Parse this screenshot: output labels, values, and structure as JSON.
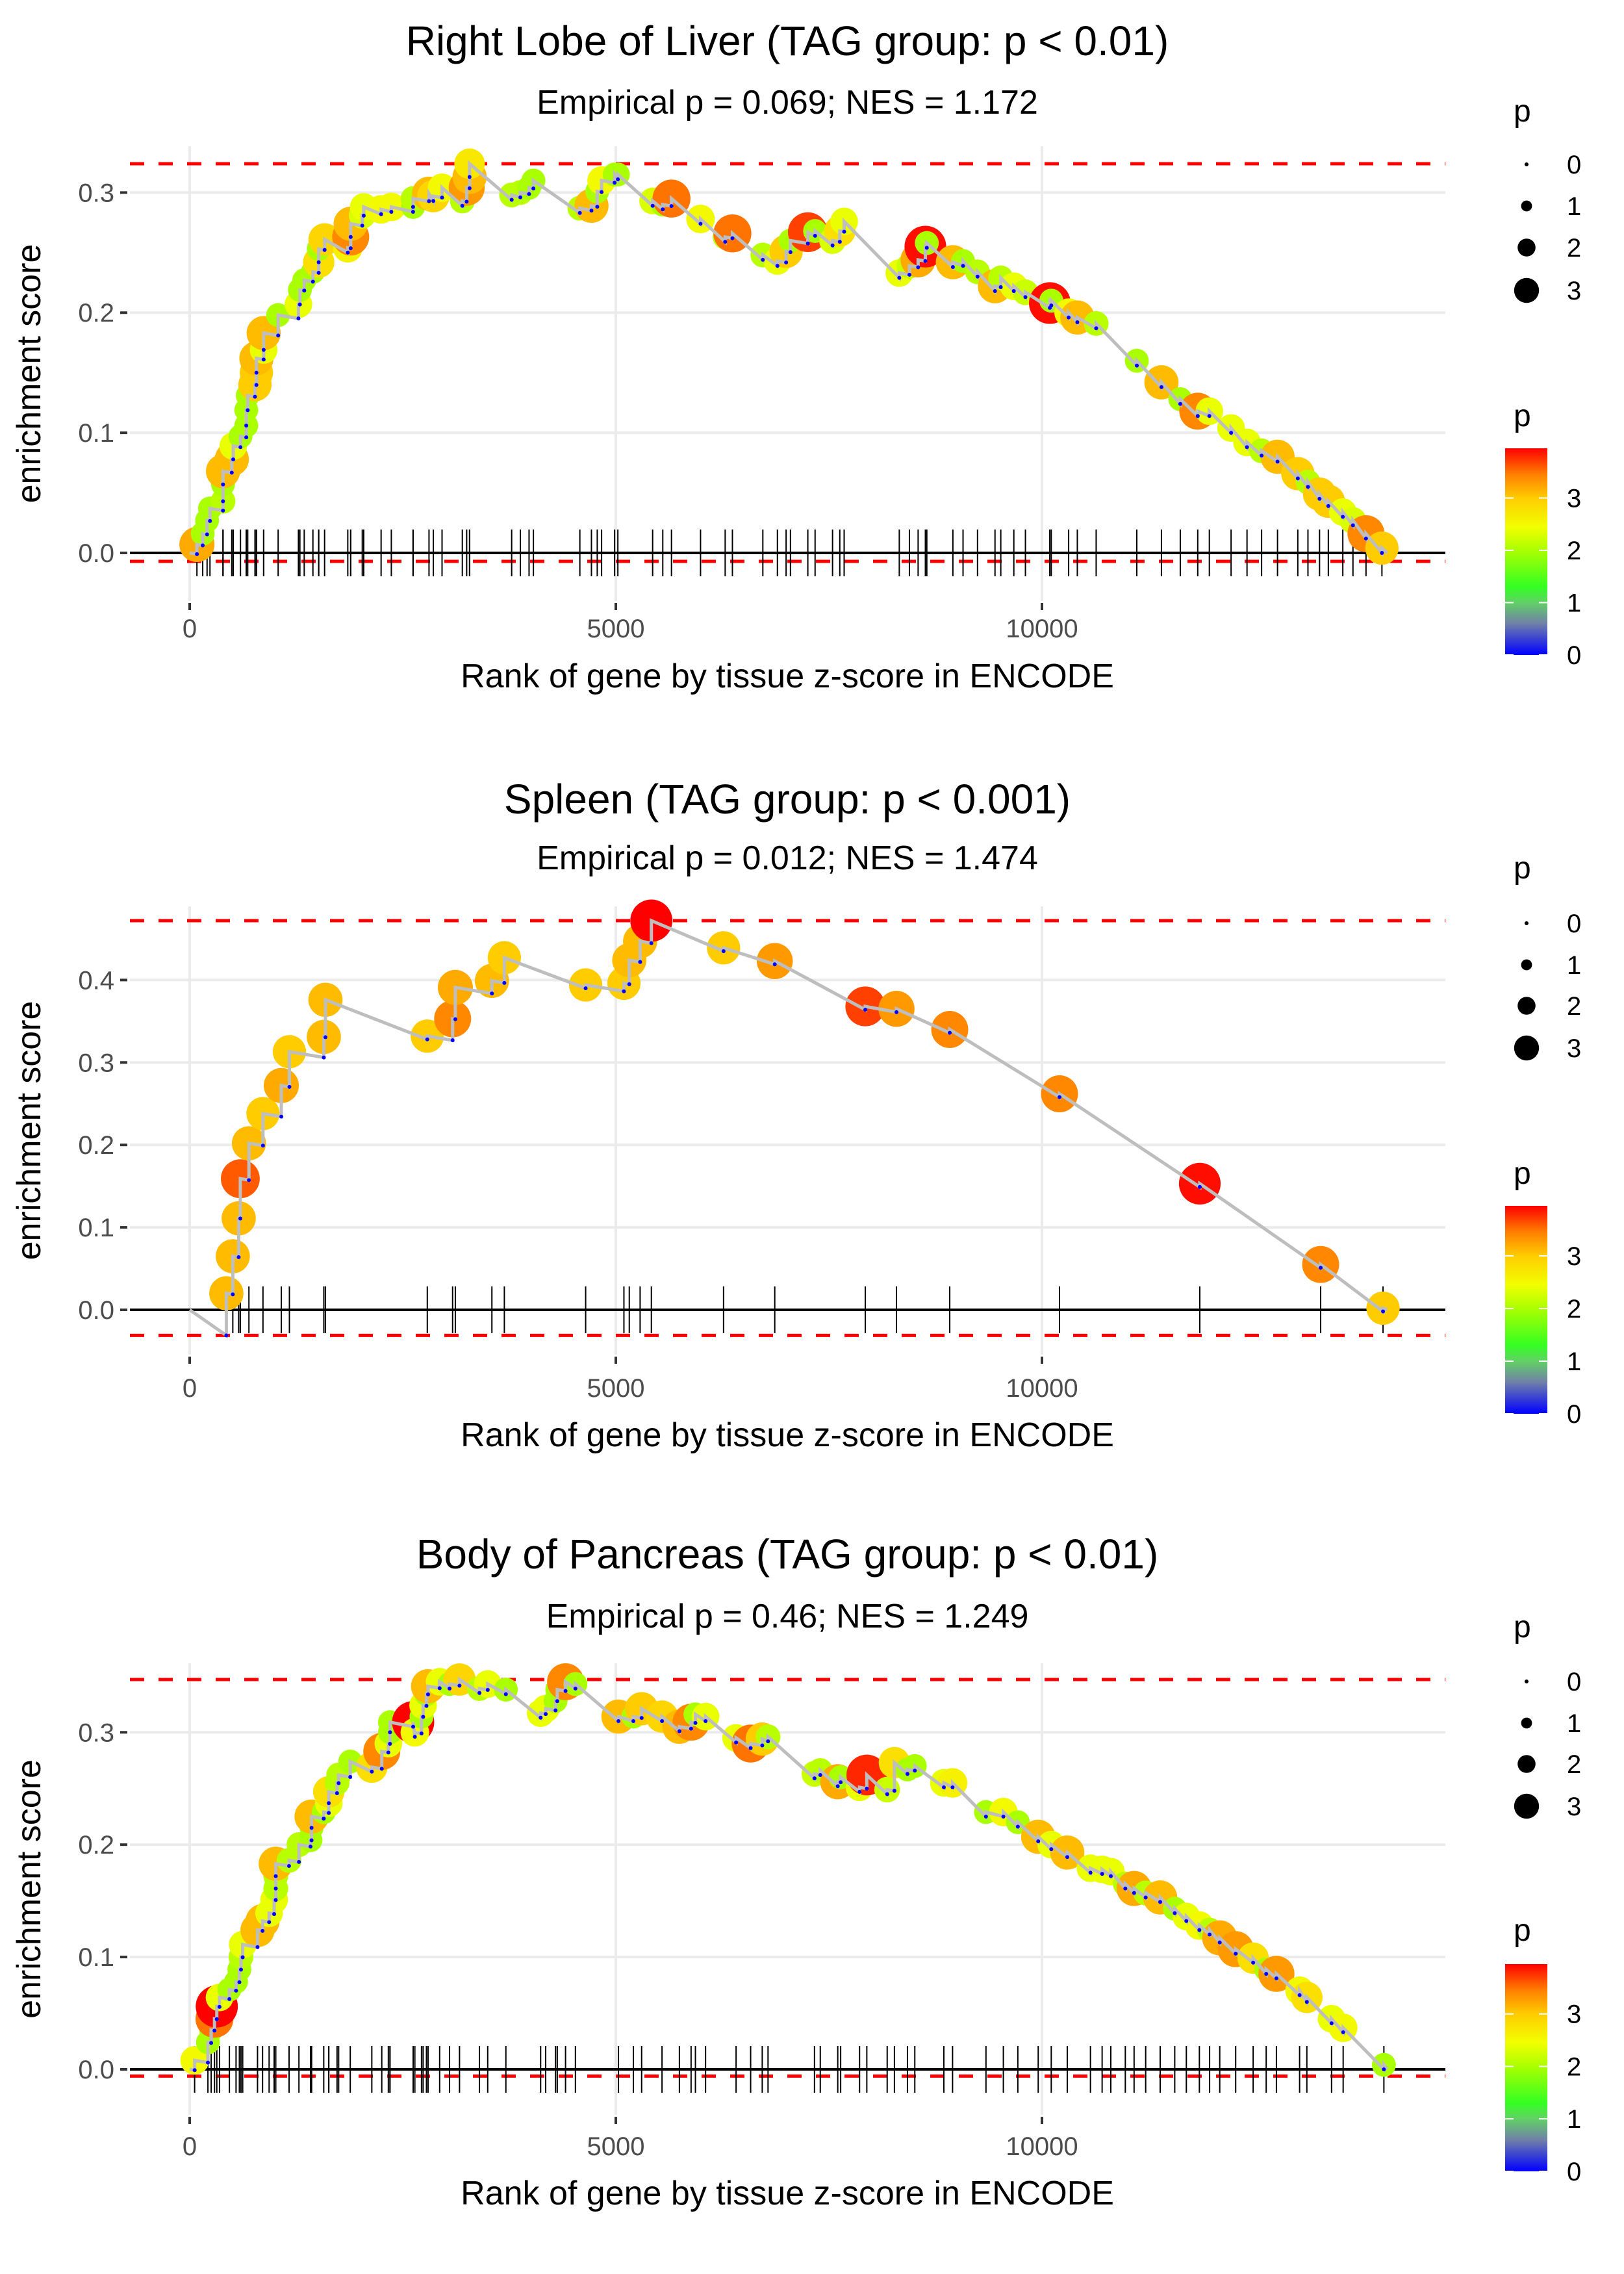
{
  "figure": {
    "legend_title": "p",
    "xlabel": "Rank of gene by tissue z-score in ENCODE",
    "ylabel": "enrichment score",
    "size_legend": {
      "labels": [
        "0",
        "1",
        "2",
        "3"
      ],
      "values": [
        0,
        1,
        2,
        3
      ]
    },
    "color_legend": {
      "labels": [
        "3",
        "2",
        "1",
        "0"
      ],
      "values": [
        3,
        2,
        1,
        0
      ],
      "range": [
        0,
        3.95
      ],
      "gradient": [
        {
          "v": 0.0,
          "color": "#0000ff"
        },
        {
          "v": 0.6,
          "color": "#7080a8"
        },
        {
          "v": 1.0,
          "color": "#62d066"
        },
        {
          "v": 1.3,
          "color": "#33ff22"
        },
        {
          "v": 2.0,
          "color": "#aaff00"
        },
        {
          "v": 2.45,
          "color": "#f2ff00"
        },
        {
          "v": 3.0,
          "color": "#ffcc00"
        },
        {
          "v": 3.45,
          "color": "#ff8000"
        },
        {
          "v": 3.95,
          "color": "#ff0000"
        }
      ]
    },
    "colors": {
      "line": "#bebebe",
      "dashed": "#ff0000",
      "rug": "#000000",
      "grid": "#ebebeb",
      "axis_text": "#4d4d4d",
      "low_point": "#0000ff"
    }
  },
  "chart_data": [
    {
      "type": "scatter",
      "title": "Right Lobe of Liver (TAG group: p < 0.01)",
      "subtitle": "Empirical p = 0.069; NES = 1.172",
      "xlabel": "Rank of gene by tissue z-score in ENCODE",
      "ylabel": "enrichment score",
      "xlim": [
        -800,
        14800
      ],
      "ylim": [
        -0.04,
        0.335
      ],
      "xticks": [
        0,
        5000,
        10000
      ],
      "xtick_labels": [
        "0",
        "5000",
        "10000"
      ],
      "yticks": [
        0.0,
        0.1,
        0.2,
        0.3
      ],
      "ytick_labels": [
        "0.0",
        "0.1",
        "0.2",
        "0.3"
      ],
      "max_es": 0.324,
      "min_es": -0.007,
      "points": [
        [
          85,
          0.007,
          3.2
        ],
        [
          153,
          0.016,
          2.0
        ],
        [
          204,
          0.027,
          2.0
        ],
        [
          238,
          0.037,
          2.0
        ],
        [
          391,
          0.043,
          2.1
        ],
        [
          391,
          0.057,
          2.0
        ],
        [
          391,
          0.068,
          3.1
        ],
        [
          494,
          0.078,
          3.1
        ],
        [
          511,
          0.089,
          2.4
        ],
        [
          596,
          0.097,
          2.0
        ],
        [
          664,
          0.106,
          2.0
        ],
        [
          664,
          0.119,
          2.0
        ],
        [
          681,
          0.131,
          2.0
        ],
        [
          766,
          0.14,
          3.0
        ],
        [
          783,
          0.15,
          3.0
        ],
        [
          783,
          0.162,
          3.1
        ],
        [
          868,
          0.169,
          2.4
        ],
        [
          868,
          0.183,
          3.1
        ],
        [
          1038,
          0.198,
          2.0
        ],
        [
          1276,
          0.207,
          2.4
        ],
        [
          1293,
          0.219,
          2.0
        ],
        [
          1344,
          0.227,
          2.0
        ],
        [
          1446,
          0.234,
          2.0
        ],
        [
          1514,
          0.242,
          2.8
        ],
        [
          1514,
          0.253,
          2.0
        ],
        [
          1583,
          0.261,
          2.9
        ],
        [
          1855,
          0.254,
          2.6
        ],
        [
          1889,
          0.263,
          3.4
        ],
        [
          1889,
          0.274,
          3.1
        ],
        [
          2025,
          0.281,
          2.3
        ],
        [
          2042,
          0.288,
          2.4
        ],
        [
          2246,
          0.286,
          2.5
        ],
        [
          2366,
          0.288,
          2.5
        ],
        [
          2621,
          0.288,
          2.0
        ],
        [
          2621,
          0.295,
          2.1
        ],
        [
          2808,
          0.299,
          3.1
        ],
        [
          2859,
          0.297,
          2.9
        ],
        [
          2961,
          0.304,
          2.5
        ],
        [
          3199,
          0.293,
          2.1
        ],
        [
          3250,
          0.304,
          3.3
        ],
        [
          3284,
          0.313,
          3.1
        ],
        [
          3284,
          0.324,
          2.7
        ],
        [
          3778,
          0.298,
          2.1
        ],
        [
          3880,
          0.3,
          2.1
        ],
        [
          3982,
          0.304,
          2.0
        ],
        [
          4033,
          0.31,
          2.0
        ],
        [
          4578,
          0.287,
          2.1
        ],
        [
          4714,
          0.289,
          3.1
        ],
        [
          4782,
          0.301,
          2.0
        ],
        [
          4833,
          0.31,
          2.5
        ],
        [
          4986,
          0.315,
          2.0
        ],
        [
          5024,
          0.315,
          2.0
        ],
        [
          5432,
          0.293,
          2.3
        ],
        [
          5551,
          0.29,
          2.0
        ],
        [
          5653,
          0.295,
          3.5
        ],
        [
          5994,
          0.278,
          2.5
        ],
        [
          6283,
          0.263,
          2.1
        ],
        [
          6368,
          0.266,
          3.5
        ],
        [
          6725,
          0.248,
          2.1
        ],
        [
          6896,
          0.243,
          2.4
        ],
        [
          6998,
          0.251,
          3.0
        ],
        [
          7049,
          0.26,
          2.0
        ],
        [
          7253,
          0.267,
          3.7
        ],
        [
          7338,
          0.268,
          2.0
        ],
        [
          7543,
          0.26,
          2.3
        ],
        [
          7628,
          0.268,
          2.8
        ],
        [
          7679,
          0.276,
          2.4
        ],
        [
          8326,
          0.233,
          2.4
        ],
        [
          8445,
          0.239,
          2.2
        ],
        [
          8547,
          0.244,
          3.2
        ],
        [
          8632,
          0.255,
          3.9
        ],
        [
          8649,
          0.258,
          2.0
        ],
        [
          8955,
          0.242,
          3.1
        ],
        [
          9074,
          0.243,
          2.0
        ],
        [
          9244,
          0.234,
          2.1
        ],
        [
          9449,
          0.222,
          3.1
        ],
        [
          9517,
          0.229,
          2.1
        ],
        [
          9670,
          0.222,
          2.4
        ],
        [
          9806,
          0.217,
          2.2
        ],
        [
          10092,
          0.208,
          3.9
        ],
        [
          10109,
          0.21,
          2.0
        ],
        [
          10313,
          0.2,
          2.5
        ],
        [
          10415,
          0.196,
          3.1
        ],
        [
          10636,
          0.191,
          2.1
        ],
        [
          11113,
          0.16,
          2.0
        ],
        [
          11402,
          0.142,
          3.1
        ],
        [
          11623,
          0.128,
          2.0
        ],
        [
          11828,
          0.118,
          3.4
        ],
        [
          11964,
          0.118,
          2.4
        ],
        [
          12219,
          0.104,
          2.4
        ],
        [
          12406,
          0.092,
          2.4
        ],
        [
          12577,
          0.085,
          2.1
        ],
        [
          12764,
          0.08,
          3.1
        ],
        [
          13002,
          0.066,
          3.0
        ],
        [
          13121,
          0.059,
          2.1
        ],
        [
          13257,
          0.049,
          3.0
        ],
        [
          13360,
          0.043,
          3.0
        ],
        [
          13530,
          0.034,
          2.4
        ],
        [
          13649,
          0.027,
          2.3
        ],
        [
          13802,
          0.016,
          3.4
        ],
        [
          13989,
          0.004,
          3.0
        ]
      ]
    },
    {
      "type": "scatter",
      "title": "Spleen (TAG group: p < 0.001)",
      "subtitle": "Empirical p = 0.012; NES = 1.474",
      "xlabel": "Rank of gene by tissue z-score in ENCODE",
      "ylabel": "enrichment score",
      "xlim": [
        -800,
        14800
      ],
      "ylim": [
        -0.055,
        0.485
      ],
      "xticks": [
        0,
        5000,
        10000
      ],
      "xtick_labels": [
        "0",
        "5000",
        "10000"
      ],
      "yticks": [
        0.0,
        0.1,
        0.2,
        0.3,
        0.4
      ],
      "ytick_labels": [
        "0.0",
        "0.1",
        "0.2",
        "0.3",
        "0.4"
      ],
      "max_es": 0.472,
      "min_es": -0.031,
      "points": [
        [
          430,
          0.02,
          3.1
        ],
        [
          506,
          0.065,
          3.1
        ],
        [
          575,
          0.111,
          3.1
        ],
        [
          594,
          0.159,
          3.6
        ],
        [
          695,
          0.202,
          3.1
        ],
        [
          860,
          0.238,
          3.0
        ],
        [
          1075,
          0.272,
          3.2
        ],
        [
          1170,
          0.313,
          3.0
        ],
        [
          1574,
          0.331,
          3.1
        ],
        [
          1593,
          0.376,
          3.1
        ],
        [
          2788,
          0.332,
          3.0
        ],
        [
          3085,
          0.353,
          3.4
        ],
        [
          3117,
          0.391,
          3.2
        ],
        [
          3546,
          0.399,
          3.1
        ],
        [
          3692,
          0.427,
          3.0
        ],
        [
          4646,
          0.394,
          3.0
        ],
        [
          5095,
          0.396,
          3.0
        ],
        [
          5158,
          0.424,
          3.1
        ],
        [
          5285,
          0.447,
          3.1
        ],
        [
          5417,
          0.472,
          3.95
        ],
        [
          6264,
          0.439,
          3.0
        ],
        [
          6865,
          0.423,
          3.3
        ],
        [
          7927,
          0.368,
          3.7
        ],
        [
          8293,
          0.365,
          3.3
        ],
        [
          8918,
          0.34,
          3.4
        ],
        [
          10206,
          0.262,
          3.4
        ],
        [
          11852,
          0.153,
          3.9
        ],
        [
          13270,
          0.055,
          3.4
        ],
        [
          14002,
          0.002,
          3.0
        ]
      ]
    },
    {
      "type": "scatter",
      "title": "Body of Pancreas (TAG group: p < 0.01)",
      "subtitle": "Empirical p = 0.46; NES = 1.249",
      "xlabel": "Rank of gene by tissue z-score in ENCODE",
      "ylabel": "enrichment score",
      "xlim": [
        -800,
        14800
      ],
      "ylim": [
        -0.04,
        0.36
      ],
      "xticks": [
        0,
        5000,
        10000
      ],
      "xtick_labels": [
        "0",
        "5000",
        "10000"
      ],
      "yticks": [
        0.0,
        0.1,
        0.2,
        0.3
      ],
      "ytick_labels": [
        "0.0",
        "0.1",
        "0.2",
        "0.3"
      ],
      "max_es": 0.347,
      "min_es": -0.006,
      "points": [
        [
          58,
          0.008,
          2.5
        ],
        [
          214,
          0.024,
          2.0
        ],
        [
          252,
          0.035,
          2.0
        ],
        [
          291,
          0.045,
          3.5
        ],
        [
          318,
          0.056,
          3.95
        ],
        [
          350,
          0.064,
          2.4
        ],
        [
          466,
          0.071,
          2.0
        ],
        [
          544,
          0.078,
          2.0
        ],
        [
          583,
          0.089,
          2.0
        ],
        [
          602,
          0.1,
          2.1
        ],
        [
          622,
          0.111,
          2.4
        ],
        [
          796,
          0.124,
          3.1
        ],
        [
          855,
          0.132,
          3.1
        ],
        [
          932,
          0.139,
          2.4
        ],
        [
          991,
          0.151,
          2.4
        ],
        [
          1010,
          0.161,
          2.1
        ],
        [
          1010,
          0.172,
          2.1
        ],
        [
          1010,
          0.183,
          3.1
        ],
        [
          1166,
          0.186,
          2.1
        ],
        [
          1282,
          0.2,
          2.1
        ],
        [
          1418,
          0.204,
          2.0
        ],
        [
          1430,
          0.215,
          2.0
        ],
        [
          1430,
          0.225,
          3.1
        ],
        [
          1573,
          0.229,
          2.0
        ],
        [
          1632,
          0.237,
          2.4
        ],
        [
          1632,
          0.247,
          2.8
        ],
        [
          1729,
          0.255,
          2.1
        ],
        [
          1748,
          0.262,
          2.1
        ],
        [
          1884,
          0.274,
          2.0
        ],
        [
          2137,
          0.269,
          2.8
        ],
        [
          2254,
          0.283,
          3.4
        ],
        [
          2331,
          0.29,
          2.4
        ],
        [
          2350,
          0.3,
          2.0
        ],
        [
          2350,
          0.309,
          2.0
        ],
        [
          2622,
          0.309,
          3.95
        ],
        [
          2642,
          0.3,
          2.5
        ],
        [
          2720,
          0.314,
          2.0
        ],
        [
          2739,
          0.324,
          2.4
        ],
        [
          2778,
          0.334,
          2.0
        ],
        [
          2797,
          0.341,
          3.1
        ],
        [
          2933,
          0.345,
          2.4
        ],
        [
          3049,
          0.343,
          2.0
        ],
        [
          3166,
          0.347,
          2.9
        ],
        [
          3400,
          0.339,
          2.1
        ],
        [
          3497,
          0.343,
          2.4
        ],
        [
          3710,
          0.338,
          2.0
        ],
        [
          4118,
          0.317,
          2.4
        ],
        [
          4177,
          0.321,
          2.4
        ],
        [
          4293,
          0.328,
          2.0
        ],
        [
          4313,
          0.338,
          2.0
        ],
        [
          4410,
          0.345,
          3.4
        ],
        [
          4526,
          0.343,
          2.0
        ],
        [
          5031,
          0.314,
          3.1
        ],
        [
          5206,
          0.314,
          2.0
        ],
        [
          5303,
          0.321,
          3.0
        ],
        [
          5542,
          0.314,
          2.9
        ],
        [
          5746,
          0.305,
          3.1
        ],
        [
          5883,
          0.309,
          3.4
        ],
        [
          5934,
          0.316,
          2.0
        ],
        [
          6053,
          0.314,
          2.4
        ],
        [
          6411,
          0.295,
          2.4
        ],
        [
          6582,
          0.29,
          3.5
        ],
        [
          6718,
          0.294,
          3.0
        ],
        [
          6786,
          0.296,
          2.1
        ],
        [
          7331,
          0.263,
          2.2
        ],
        [
          7399,
          0.266,
          2.1
        ],
        [
          7604,
          0.256,
          3.2
        ],
        [
          7638,
          0.26,
          2.0
        ],
        [
          7860,
          0.251,
          2.4
        ],
        [
          7945,
          0.262,
          3.8
        ],
        [
          8184,
          0.249,
          2.2
        ],
        [
          8269,
          0.273,
          2.8
        ],
        [
          8422,
          0.267,
          2.0
        ],
        [
          8508,
          0.27,
          2.0
        ],
        [
          8849,
          0.255,
          2.4
        ],
        [
          8951,
          0.255,
          2.6
        ],
        [
          9343,
          0.229,
          2.0
        ],
        [
          9547,
          0.229,
          2.5
        ],
        [
          9717,
          0.22,
          2.0
        ],
        [
          9956,
          0.207,
          3.1
        ],
        [
          10109,
          0.2,
          2.4
        ],
        [
          10297,
          0.193,
          3.1
        ],
        [
          10569,
          0.179,
          2.4
        ],
        [
          10706,
          0.178,
          2.4
        ],
        [
          10808,
          0.176,
          2.4
        ],
        [
          10978,
          0.165,
          2.1
        ],
        [
          11081,
          0.161,
          3.2
        ],
        [
          11217,
          0.157,
          2.1
        ],
        [
          11387,
          0.153,
          3.1
        ],
        [
          11558,
          0.143,
          2.0
        ],
        [
          11694,
          0.136,
          2.4
        ],
        [
          11847,
          0.128,
          2.5
        ],
        [
          11967,
          0.124,
          2.1
        ],
        [
          12086,
          0.117,
          3.2
        ],
        [
          12273,
          0.107,
          3.3
        ],
        [
          12478,
          0.099,
          2.8
        ],
        [
          12631,
          0.089,
          2.0
        ],
        [
          12751,
          0.085,
          3.3
        ],
        [
          13023,
          0.07,
          2.5
        ],
        [
          13108,
          0.064,
          2.8
        ],
        [
          13398,
          0.045,
          2.4
        ],
        [
          13534,
          0.037,
          2.5
        ],
        [
          14012,
          0.004,
          2.0
        ]
      ]
    }
  ]
}
